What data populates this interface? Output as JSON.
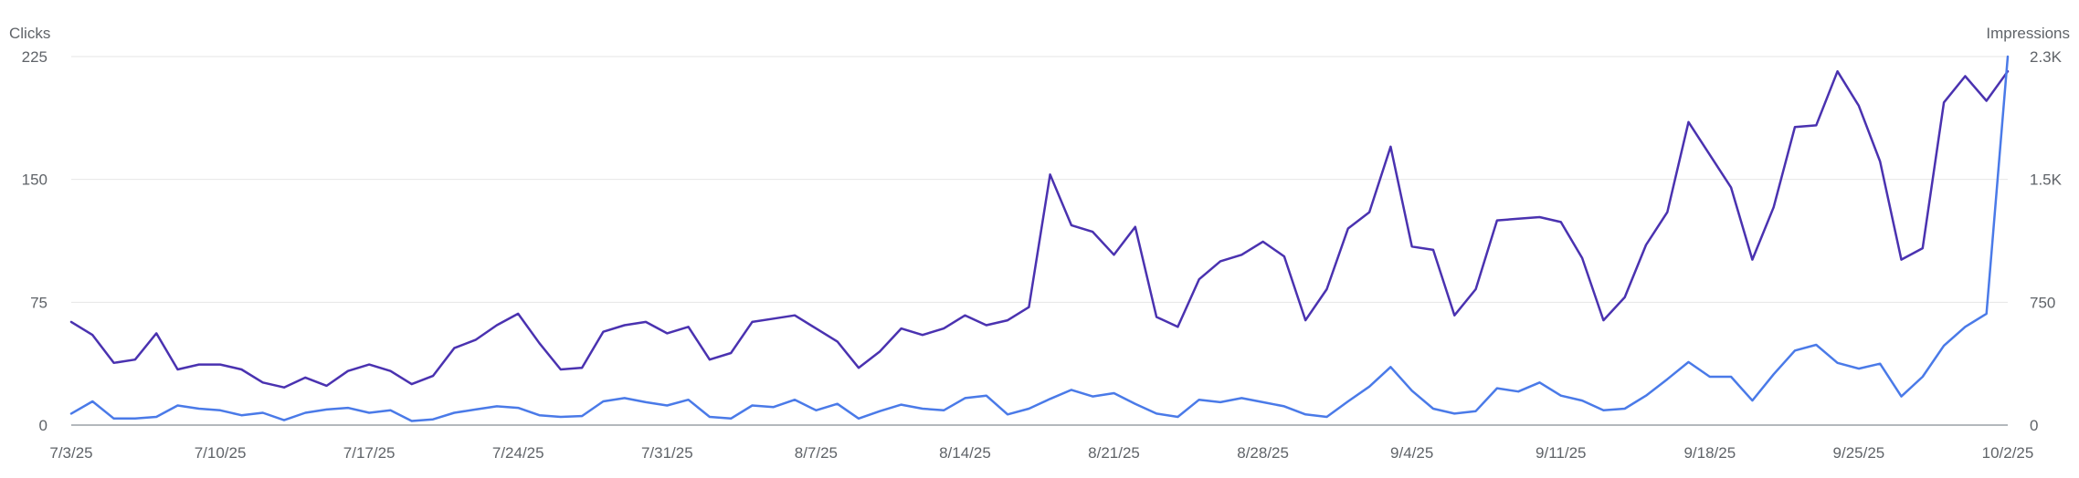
{
  "chart_data": {
    "type": "line",
    "left_axis": {
      "title": "Clicks",
      "ticks": [
        "0",
        "75",
        "150",
        "225"
      ],
      "range": [
        0,
        225
      ]
    },
    "right_axis": {
      "title": "Impressions",
      "ticks": [
        "0",
        "750",
        "1.5K",
        "2.3K"
      ],
      "range": [
        0,
        2250
      ]
    },
    "x_labels": [
      "7/3/25",
      "7/10/25",
      "7/17/25",
      "7/24/25",
      "7/31/25",
      "8/7/25",
      "8/14/25",
      "8/21/25",
      "8/28/25",
      "9/4/25",
      "9/11/25",
      "9/18/25",
      "9/25/25",
      "10/2/25"
    ],
    "grid": true,
    "series": [
      {
        "name": "Clicks",
        "axis": "left",
        "color": "#4a32b0",
        "values": [
          63,
          55,
          38,
          40,
          56,
          34,
          37,
          37,
          34,
          26,
          23,
          29,
          24,
          33,
          37,
          33,
          25,
          30,
          47,
          52,
          61,
          68,
          50,
          34,
          35,
          57,
          61,
          63,
          56,
          60,
          40,
          44,
          63,
          65,
          67,
          59,
          51,
          35,
          45,
          59,
          55,
          59,
          67,
          61,
          64,
          72,
          153,
          122,
          118,
          104,
          121,
          66,
          60,
          89,
          100,
          104,
          112,
          103,
          64,
          83,
          120,
          130,
          170,
          109,
          107,
          67,
          83,
          125,
          126,
          127,
          124,
          102,
          64,
          78,
          110,
          130,
          185,
          165,
          145,
          101,
          133,
          182,
          183,
          216,
          195,
          161,
          101,
          108,
          197,
          213,
          198,
          216
        ]
      },
      {
        "name": "Impressions",
        "axis": "right",
        "color": "#4a7ae8",
        "values": [
          70,
          145,
          40,
          40,
          50,
          120,
          100,
          90,
          60,
          75,
          30,
          75,
          95,
          105,
          75,
          90,
          25,
          35,
          75,
          95,
          115,
          105,
          60,
          50,
          55,
          145,
          165,
          140,
          120,
          155,
          50,
          40,
          120,
          110,
          155,
          90,
          130,
          40,
          85,
          125,
          100,
          90,
          165,
          180,
          65,
          100,
          160,
          215,
          175,
          195,
          130,
          70,
          50,
          155,
          140,
          165,
          140,
          115,
          65,
          50,
          145,
          235,
          355,
          210,
          100,
          70,
          85,
          225,
          205,
          260,
          180,
          150,
          90,
          100,
          180,
          280,
          385,
          295,
          295,
          150,
          310,
          455,
          490,
          380,
          345,
          375,
          175,
          295,
          485,
          600,
          680,
          2250
        ]
      }
    ]
  }
}
